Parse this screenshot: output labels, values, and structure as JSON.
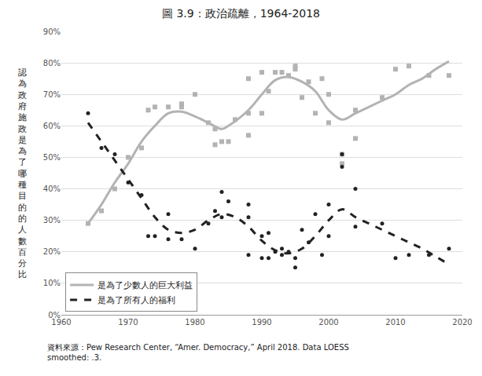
{
  "chart_data": {
    "type": "scatter",
    "title": "圖 3.9：政治疏離，1964-2018",
    "y_label": "認為政府施政是為了哪種目的的人數百分比",
    "source": [
      "資料來源：Pew Research Center, “Amer. Democracy,” April 2018. Data LOESS",
      "smoothed: .3."
    ],
    "xlim": [
      1960,
      2020
    ],
    "xticks": [
      1960,
      1970,
      1980,
      1990,
      2000,
      2010,
      2020
    ],
    "ylim": [
      0,
      90
    ],
    "yticks": [
      {
        "value": 0,
        "label": "0%"
      },
      {
        "value": 10,
        "label": "10%"
      },
      {
        "value": 20,
        "label": "20%"
      },
      {
        "value": 30,
        "label": "30%"
      },
      {
        "value": 40,
        "label": "40%"
      },
      {
        "value": 50,
        "label": "50%"
      },
      {
        "value": 60,
        "label": "60%"
      },
      {
        "value": 70,
        "label": "70%"
      },
      {
        "value": 80,
        "label": "80%"
      },
      {
        "value": 90,
        "label": "90%"
      }
    ],
    "grid": true,
    "legend": "lower left",
    "series": [
      {
        "type": "scatter",
        "color": "#b3b3b3",
        "marker": "square",
        "x": [
          1964,
          1966,
          1968,
          1970,
          1972,
          1973,
          1974,
          1976,
          1978,
          1978,
          1980,
          1982,
          1983,
          1983,
          1984,
          1985,
          1986,
          1988,
          1988,
          1988,
          1990,
          1990,
          1991,
          1992,
          1993,
          1994,
          1995,
          1995,
          1996,
          1997,
          1998,
          1999,
          2000,
          2000,
          2002,
          2002,
          2004,
          2004,
          2008,
          2010,
          2012,
          2015,
          2018
        ],
        "values": [
          29,
          33,
          40,
          50,
          53,
          65,
          66,
          66,
          67,
          66,
          70,
          61,
          54,
          59,
          55,
          55,
          62,
          75,
          64,
          57,
          64,
          77,
          71,
          77,
          77,
          76,
          79,
          78,
          69,
          74,
          64,
          75,
          70,
          61,
          51,
          48,
          56,
          65,
          69,
          78,
          79,
          76,
          76
        ]
      },
      {
        "type": "scatter",
        "color": "#222222",
        "marker": "circle",
        "x": [
          1964,
          1966,
          1968,
          1970,
          1972,
          1973,
          1974,
          1976,
          1976,
          1978,
          1980,
          1982,
          1983,
          1984,
          1984,
          1985,
          1988,
          1988,
          1988,
          1990,
          1990,
          1991,
          1991,
          1992,
          1993,
          1993,
          1994,
          1995,
          1995,
          1996,
          1997,
          1998,
          1999,
          2000,
          2000,
          2002,
          2002,
          2004,
          2004,
          2008,
          2010,
          2012,
          2015,
          2018
        ],
        "values": [
          64,
          53,
          51,
          42,
          38,
          25,
          25,
          24,
          32,
          24,
          21,
          29,
          33,
          39,
          31,
          36,
          35,
          31,
          19,
          25,
          18,
          26,
          18,
          20,
          21,
          19,
          20,
          18,
          15,
          27,
          23,
          32,
          19,
          35,
          25,
          51,
          47,
          40,
          28,
          29,
          18,
          19,
          19,
          21
        ]
      },
      {
        "type": "line",
        "name": "是為了少數人的巨大利益",
        "color": "#b3b3b3",
        "line_style": "solid",
        "x": [
          1964,
          1966,
          1968,
          1970,
          1972,
          1974,
          1976,
          1978,
          1980,
          1982,
          1984,
          1985,
          1988,
          1990,
          1992,
          1994,
          1996,
          1998,
          2000,
          2002,
          2004,
          2006,
          2008,
          2010,
          2012,
          2014,
          2016,
          2018
        ],
        "values": [
          29,
          35,
          42,
          48,
          55,
          60,
          64,
          64.5,
          63,
          61,
          59,
          60,
          65,
          70,
          74.5,
          75.5,
          74,
          71,
          65,
          62,
          64,
          66,
          68,
          70,
          73,
          75,
          78,
          80.5
        ]
      },
      {
        "type": "line",
        "name": "是為了所有人的福利",
        "color": "#222222",
        "line_style": "dash",
        "x": [
          1964,
          1966,
          1968,
          1970,
          1972,
          1974,
          1976,
          1978,
          1980,
          1982,
          1984,
          1986,
          1988,
          1990,
          1992,
          1994,
          1996,
          1998,
          2000,
          2002,
          2004,
          2006,
          2008,
          2010,
          2012,
          2014,
          2016,
          2018
        ],
        "values": [
          61,
          55,
          49,
          43,
          37,
          31,
          27,
          26,
          27,
          30,
          32,
          31,
          28,
          23.5,
          20.5,
          19.5,
          21,
          25,
          30,
          33.5,
          31,
          29,
          27,
          25,
          23,
          21,
          18.5,
          16
        ]
      }
    ]
  }
}
